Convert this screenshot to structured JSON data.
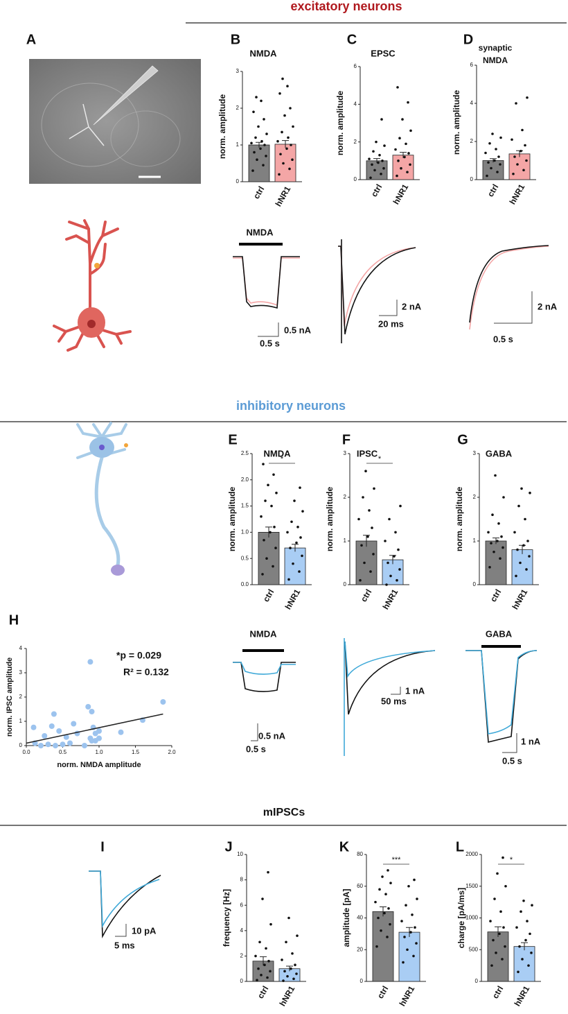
{
  "headings": {
    "excitatory": "excitatory neurons",
    "inhibitory": "inhibitory neurons",
    "mipscs": "mIPSCs"
  },
  "panel_letters": [
    "A",
    "B",
    "C",
    "D",
    "E",
    "F",
    "G",
    "H",
    "I",
    "J",
    "K",
    "L"
  ],
  "chart_data": [
    {
      "type": "bar",
      "title": "NMDA",
      "ylabel": "norm. amplitude",
      "categories": [
        "ctrl",
        "hNR1"
      ],
      "values": [
        1.0,
        1.02
      ],
      "errors": [
        0.07,
        0.1
      ],
      "colors": [
        "#808080",
        "#f4a6a6"
      ],
      "points": [
        [
          0.3,
          0.45,
          0.6,
          0.7,
          0.8,
          0.9,
          1.0,
          1.05,
          1.1,
          1.2,
          1.3,
          1.5,
          1.7,
          1.9,
          2.2,
          2.3
        ],
        [
          0.2,
          0.35,
          0.5,
          0.6,
          0.75,
          0.9,
          1.0,
          1.1,
          1.2,
          1.35,
          1.5,
          1.8,
          2.0,
          2.4,
          2.6,
          2.8
        ]
      ],
      "ylim": [
        0,
        3
      ],
      "yticks": [
        0,
        1,
        2,
        3
      ]
    },
    {
      "type": "bar",
      "title": "EPSC",
      "ylabel": "norm. amplitude",
      "categories": [
        "ctrl",
        "hNR1"
      ],
      "values": [
        1.0,
        1.3
      ],
      "errors": [
        0.12,
        0.15
      ],
      "colors": [
        "#808080",
        "#f4a6a6"
      ],
      "points": [
        [
          0.1,
          0.3,
          0.5,
          0.6,
          0.8,
          0.9,
          1.0,
          1.1,
          1.3,
          1.5,
          1.8,
          2.0,
          3.2
        ],
        [
          0.2,
          0.4,
          0.6,
          0.8,
          1.0,
          1.2,
          1.4,
          1.6,
          1.9,
          2.2,
          2.6,
          3.2,
          4.1,
          4.9
        ]
      ],
      "ylim": [
        0,
        6
      ],
      "yticks": [
        0,
        2,
        4,
        6
      ]
    },
    {
      "type": "bar",
      "title": [
        "synaptic",
        "NMDA"
      ],
      "ylabel": "norm. amplitude",
      "categories": [
        "ctrl",
        "hNR1"
      ],
      "values": [
        1.0,
        1.35
      ],
      "errors": [
        0.1,
        0.17
      ],
      "colors": [
        "#808080",
        "#f4a6a6"
      ],
      "points": [
        [
          0.2,
          0.4,
          0.6,
          0.8,
          0.9,
          1.0,
          1.2,
          1.4,
          1.6,
          1.9,
          2.2,
          2.4
        ],
        [
          0.3,
          0.5,
          0.8,
          1.0,
          1.2,
          1.5,
          1.8,
          2.1,
          2.6,
          4.0,
          4.3
        ]
      ],
      "ylim": [
        0,
        6
      ],
      "yticks": [
        0,
        2,
        4,
        6
      ]
    },
    {
      "type": "bar",
      "title": "NMDA",
      "ylabel": "norm. amplitude",
      "categories": [
        "ctrl",
        "hNR1"
      ],
      "values": [
        1.0,
        0.7
      ],
      "errors": [
        0.1,
        0.07
      ],
      "colors": [
        "#808080",
        "#a9cdf4"
      ],
      "points": [
        [
          0.2,
          0.35,
          0.5,
          0.7,
          0.85,
          1.0,
          1.1,
          1.3,
          1.5,
          1.6,
          1.75,
          1.9,
          2.1,
          2.3
        ],
        [
          0.1,
          0.25,
          0.4,
          0.55,
          0.7,
          0.8,
          0.9,
          1.0,
          1.1,
          1.2,
          1.4,
          1.6,
          1.85
        ]
      ],
      "ylim": [
        0,
        2.5
      ],
      "yticks": [
        {
          "value": 0,
          "label": "0.0"
        },
        0.5,
        {
          "value": 1,
          "label": "1.0"
        },
        1.5,
        {
          "value": 2,
          "label": "2.0"
        },
        2.5
      ],
      "significance": "*"
    },
    {
      "type": "bar",
      "title": "IPSC",
      "ylabel": "norm. amplitude",
      "categories": [
        "ctrl",
        "hNR1"
      ],
      "values": [
        1.0,
        0.57
      ],
      "errors": [
        0.13,
        0.1
      ],
      "colors": [
        "#808080",
        "#a9cdf4"
      ],
      "points": [
        [
          0.1,
          0.3,
          0.5,
          0.7,
          0.9,
          1.1,
          1.3,
          1.5,
          1.7,
          2.0,
          2.2,
          2.6
        ],
        [
          0.0,
          0.1,
          0.2,
          0.35,
          0.5,
          0.65,
          0.8,
          1.0,
          1.2,
          1.5,
          1.8
        ]
      ],
      "ylim": [
        0,
        3
      ],
      "yticks": [
        0,
        1,
        2,
        3
      ],
      "significance": "*"
    },
    {
      "type": "bar",
      "title": "GABA",
      "ylabel": "norm. amplitude",
      "categories": [
        "ctrl",
        "hNR1"
      ],
      "values": [
        1.0,
        0.8
      ],
      "errors": [
        0.07,
        0.1
      ],
      "colors": [
        "#808080",
        "#a9cdf4"
      ],
      "points": [
        [
          0.4,
          0.6,
          0.75,
          0.85,
          0.95,
          1.0,
          1.1,
          1.2,
          1.4,
          1.6,
          2.0,
          2.5
        ],
        [
          0.2,
          0.35,
          0.5,
          0.65,
          0.8,
          0.9,
          1.0,
          1.2,
          1.5,
          1.8,
          2.1,
          2.2
        ]
      ],
      "ylim": [
        0,
        3
      ],
      "yticks": [
        0,
        1,
        2,
        3
      ]
    },
    {
      "type": "scatter",
      "xlabel": "norm. NMDA amplitude",
      "ylabel": "norm. IPSC amplitude",
      "color": "#9cc3ee",
      "x": [
        0.1,
        0.12,
        0.2,
        0.25,
        0.3,
        0.35,
        0.38,
        0.4,
        0.45,
        0.5,
        0.55,
        0.6,
        0.65,
        0.7,
        0.8,
        0.85,
        0.88,
        0.88,
        0.9,
        0.9,
        0.92,
        0.95,
        0.95,
        1.0,
        1.0,
        1.3,
        1.6,
        1.88
      ],
      "y": [
        0.75,
        0.1,
        0.0,
        0.4,
        0.05,
        0.8,
        1.3,
        0.0,
        0.6,
        0.05,
        0.35,
        0.1,
        0.9,
        0.5,
        0.0,
        1.6,
        0.3,
        3.45,
        0.2,
        1.4,
        0.75,
        0.5,
        0.2,
        0.3,
        0.6,
        0.55,
        1.05,
        1.8
      ],
      "fit": {
        "x": [
          0,
          1.88
        ],
        "y": [
          0.1,
          1.3
        ]
      },
      "annotations": [
        "*p = 0.029",
        "R² = 0.132"
      ],
      "xlim": [
        0,
        2
      ],
      "xticks": [
        {
          "value": 0,
          "label": "0.0"
        },
        0.5,
        {
          "value": 1,
          "label": "1.0"
        },
        1.5,
        {
          "value": 2,
          "label": "2.0"
        }
      ],
      "ylim": [
        0,
        4
      ],
      "yticks": [
        0,
        1,
        2,
        3,
        4
      ]
    },
    {
      "type": "bar",
      "title": null,
      "ylabel": "frequency [Hz]",
      "categories": [
        "ctrl",
        "hNR1"
      ],
      "values": [
        1.6,
        1.0
      ],
      "errors": [
        0.35,
        0.2
      ],
      "colors": [
        "#808080",
        "#a9cdf4"
      ],
      "points": [
        [
          0.1,
          0.3,
          0.5,
          0.8,
          1.0,
          1.3,
          1.6,
          2.0,
          2.6,
          3.1,
          4.5,
          6.5,
          8.6
        ],
        [
          0.05,
          0.2,
          0.4,
          0.6,
          0.8,
          1.0,
          1.3,
          1.7,
          2.2,
          3.1,
          3.6,
          5.0
        ]
      ],
      "ylim": [
        0,
        10
      ],
      "yticks": [
        0,
        2,
        4,
        6,
        8,
        10
      ]
    },
    {
      "type": "bar",
      "title": null,
      "ylabel": "amplitude [pA]",
      "categories": [
        "ctrl",
        "hNR1"
      ],
      "values": [
        44,
        31
      ],
      "errors": [
        3,
        3
      ],
      "colors": [
        "#808080",
        "#a9cdf4"
      ],
      "points": [
        [
          22,
          28,
          32,
          36,
          40,
          43,
          46,
          50,
          55,
          58,
          62,
          66,
          70
        ],
        [
          12,
          16,
          20,
          24,
          28,
          31,
          34,
          38,
          42,
          48,
          52,
          60,
          64
        ]
      ],
      "ylim": [
        0,
        80
      ],
      "yticks": [
        0,
        20,
        40,
        60,
        80
      ],
      "significance": "***"
    },
    {
      "type": "bar",
      "title": null,
      "ylabel": "charge [pA/ms]",
      "categories": [
        "ctrl",
        "hNR1"
      ],
      "values": [
        780,
        550
      ],
      "errors": [
        80,
        60
      ],
      "colors": [
        "#808080",
        "#a9cdf4"
      ],
      "points": [
        [
          250,
          350,
          450,
          550,
          650,
          750,
          850,
          950,
          1100,
          1300,
          1500,
          1700,
          1950
        ],
        [
          150,
          250,
          350,
          450,
          550,
          650,
          750,
          850,
          950,
          1100,
          1200,
          1270
        ]
      ],
      "ylim": [
        0,
        2000
      ],
      "yticks": [
        0,
        500,
        1000,
        1500,
        2000
      ],
      "significance": "*"
    }
  ],
  "traces": [
    {
      "label": "NMDA",
      "scale_y": "0.5 nA",
      "scale_x": "0.5 s"
    },
    {
      "scale_y": "2 nA",
      "scale_x": "20 ms"
    },
    {
      "scale_y": "2 nA",
      "scale_x": "0.5 s"
    },
    {
      "label": "NMDA",
      "scale_y": "0.5 nA",
      "scale_x": "0.5 s"
    },
    {
      "scale_y": "1 nA",
      "scale_x": "50 ms"
    },
    {
      "label": "GABA",
      "scale_y": "1 nA",
      "scale_x": "0.5 s"
    },
    {
      "scale_y": "10 pA",
      "scale_x": "5 ms"
    }
  ]
}
